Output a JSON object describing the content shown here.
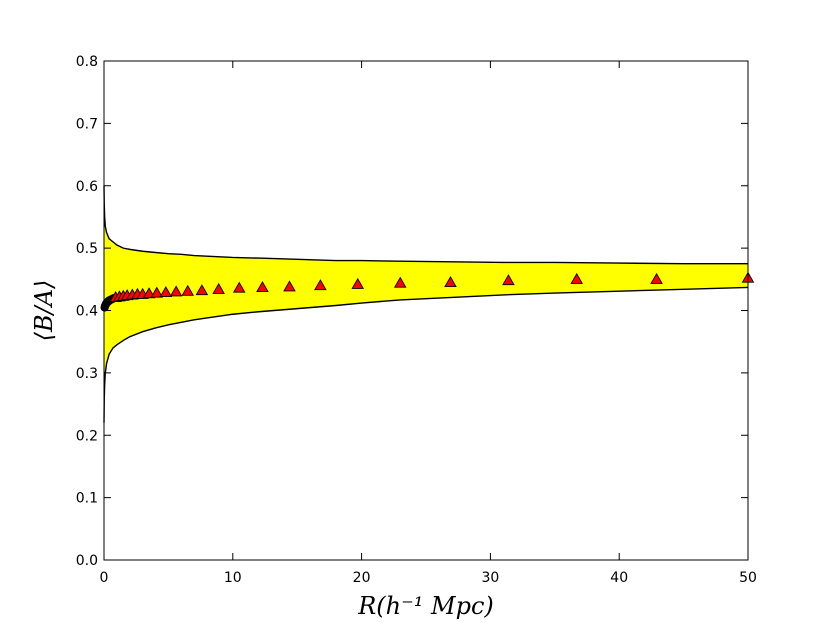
{
  "chart_data": {
    "type": "scatter",
    "xlabel": "R(h⁻¹ Mpc)",
    "ylabel": "⟨B/A⟩",
    "xlim": [
      0,
      50
    ],
    "ylim": [
      0.0,
      0.8
    ],
    "x_ticks": [
      0,
      10,
      20,
      30,
      40,
      50
    ],
    "y_ticks": [
      0.0,
      0.1,
      0.2,
      0.3,
      0.4,
      0.5,
      0.6,
      0.7,
      0.8
    ],
    "grid": false,
    "band": {
      "x": [
        0.0,
        0.02,
        0.05,
        0.1,
        0.2,
        0.4,
        0.7,
        1.0,
        1.5,
        2.0,
        3.0,
        4.0,
        5.0,
        6.0,
        7.0,
        8.0,
        10.0,
        12.0,
        15.0,
        18.0,
        20.0,
        23.0,
        27.0,
        31.0,
        35.0,
        40.0,
        45.0,
        50.0
      ],
      "upper": [
        0.6,
        0.57,
        0.55,
        0.535,
        0.525,
        0.515,
        0.51,
        0.505,
        0.5,
        0.498,
        0.495,
        0.493,
        0.491,
        0.49,
        0.488,
        0.487,
        0.485,
        0.484,
        0.482,
        0.48,
        0.48,
        0.479,
        0.478,
        0.477,
        0.477,
        0.476,
        0.475,
        0.475
      ],
      "lower": [
        0.22,
        0.26,
        0.28,
        0.3,
        0.315,
        0.33,
        0.34,
        0.345,
        0.352,
        0.358,
        0.366,
        0.372,
        0.377,
        0.381,
        0.385,
        0.388,
        0.394,
        0.398,
        0.403,
        0.408,
        0.412,
        0.417,
        0.421,
        0.425,
        0.428,
        0.431,
        0.434,
        0.437
      ],
      "color": "#ffff00",
      "edge_color": "#000000"
    },
    "circles": {
      "x": [
        0.05,
        0.1,
        0.15,
        0.2,
        0.25,
        0.3,
        0.35,
        0.4,
        0.5,
        0.6,
        0.7,
        0.8
      ],
      "y": [
        0.405,
        0.408,
        0.41,
        0.412,
        0.413,
        0.414,
        0.415,
        0.416,
        0.417,
        0.418,
        0.419,
        0.42
      ],
      "color": "#000000"
    },
    "triangles": {
      "x": [
        0.9,
        1.2,
        1.5,
        1.8,
        2.2,
        2.6,
        3.0,
        3.5,
        4.1,
        4.8,
        5.6,
        6.5,
        7.6,
        8.9,
        10.5,
        12.3,
        14.4,
        16.8,
        19.7,
        23.0,
        26.9,
        31.4,
        36.7,
        42.9,
        50.0
      ],
      "y": [
        0.421,
        0.422,
        0.423,
        0.424,
        0.425,
        0.426,
        0.426,
        0.427,
        0.428,
        0.429,
        0.43,
        0.431,
        0.432,
        0.434,
        0.436,
        0.437,
        0.438,
        0.44,
        0.442,
        0.444,
        0.445,
        0.448,
        0.45,
        0.45,
        0.452
      ],
      "color": "#ff0000",
      "edge_color": "#000000"
    }
  }
}
